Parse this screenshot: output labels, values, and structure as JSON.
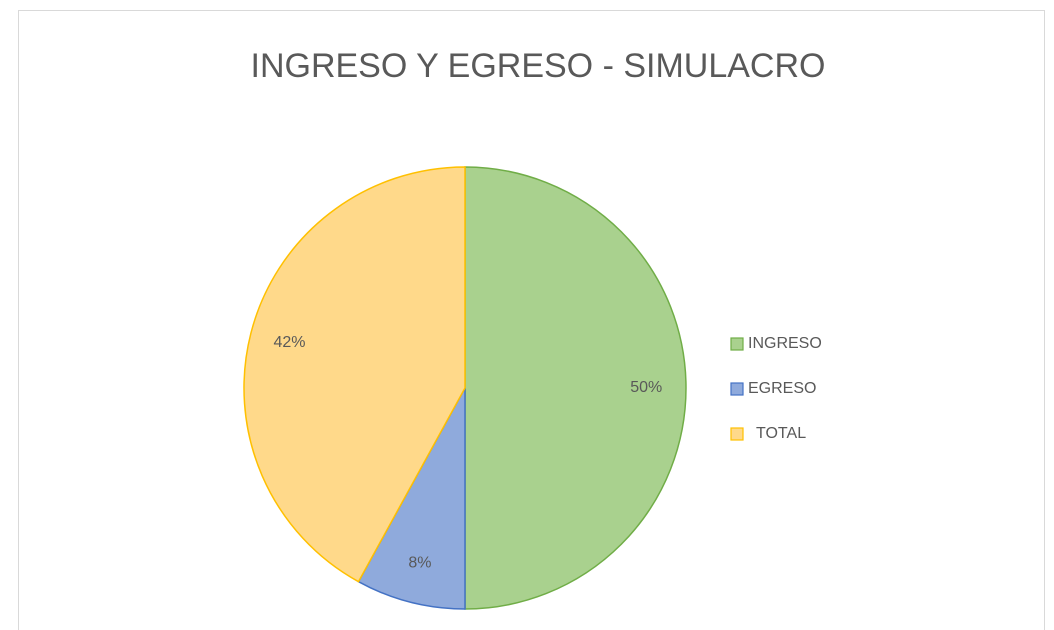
{
  "chart_data": {
    "type": "pie",
    "title": "INGRESO Y EGRESO -  SIMULACRO",
    "categories": [
      "INGRESO",
      "EGRESO",
      "TOTAL"
    ],
    "values": [
      50,
      8,
      42
    ],
    "value_labels": [
      "50%",
      "8%",
      "42%"
    ],
    "colors": [
      "#a9d18e",
      "#8faadc",
      "#ffd98a"
    ],
    "edge_colors": [
      "#70ad47",
      "#4472c4",
      "#ffc000"
    ],
    "legend": "right"
  }
}
